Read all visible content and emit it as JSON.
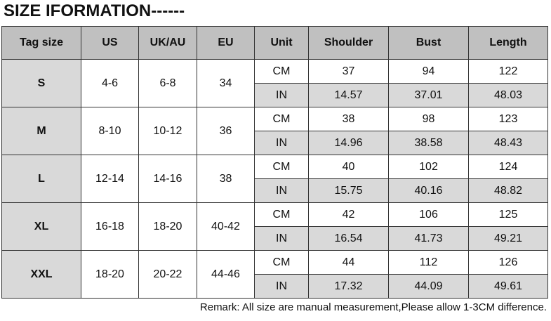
{
  "title": "SIZE IFORMATION------",
  "headers": [
    "Tag size",
    "US",
    "UK/AU",
    "EU",
    "Unit",
    "Shoulder",
    "Bust",
    "Length"
  ],
  "rows": [
    {
      "tag": "S",
      "us": "4-6",
      "uk": "6-8",
      "eu": "34",
      "cm": [
        "CM",
        "37",
        "94",
        "122"
      ],
      "in": [
        "IN",
        "14.57",
        "37.01",
        "48.03"
      ]
    },
    {
      "tag": "M",
      "us": "8-10",
      "uk": "10-12",
      "eu": "36",
      "cm": [
        "CM",
        "38",
        "98",
        "123"
      ],
      "in": [
        "IN",
        "14.96",
        "38.58",
        "48.43"
      ]
    },
    {
      "tag": "L",
      "us": "12-14",
      "uk": "14-16",
      "eu": "38",
      "cm": [
        "CM",
        "40",
        "102",
        "124"
      ],
      "in": [
        "IN",
        "15.75",
        "40.16",
        "48.82"
      ]
    },
    {
      "tag": "XL",
      "us": "16-18",
      "uk": "18-20",
      "eu": "40-42",
      "cm": [
        "CM",
        "42",
        "106",
        "125"
      ],
      "in": [
        "IN",
        "16.54",
        "41.73",
        "49.21"
      ]
    },
    {
      "tag": "XXL",
      "us": "18-20",
      "uk": "20-22",
      "eu": "44-46",
      "cm": [
        "CM",
        "44",
        "112",
        "126"
      ],
      "in": [
        "IN",
        "17.32",
        "44.09",
        "49.61"
      ]
    }
  ],
  "remark": "Remark: All size are manual measurement,Please allow 1-3CM difference."
}
